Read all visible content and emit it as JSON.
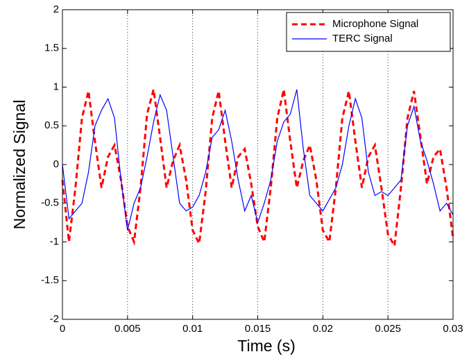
{
  "chart_data": {
    "type": "line",
    "x_label": "Time (s)",
    "y_label": "Normalized Signal",
    "x": [
      0,
      0.0005,
      0.001,
      0.0015,
      0.002,
      0.0025,
      0.003,
      0.0035,
      0.004,
      0.0045,
      0.005,
      0.0055,
      0.006,
      0.0065,
      0.007,
      0.0075,
      0.008,
      0.0085,
      0.009,
      0.0095,
      0.01,
      0.0105,
      0.011,
      0.0115,
      0.012,
      0.0125,
      0.013,
      0.0135,
      0.014,
      0.0145,
      0.015,
      0.0155,
      0.016,
      0.0165,
      0.017,
      0.0175,
      0.018,
      0.0185,
      0.019,
      0.0195,
      0.02,
      0.0205,
      0.021,
      0.0215,
      0.022,
      0.0225,
      0.023,
      0.0235,
      0.024,
      0.0245,
      0.025,
      0.0255,
      0.026,
      0.0265,
      0.027,
      0.0275,
      0.028,
      0.0285,
      0.029,
      0.0295,
      0.03
    ],
    "series": [
      {
        "name": "Microphone Signal",
        "color": "#ff0000",
        "dash": true,
        "values": [
          -0.2,
          -1,
          -0.3,
          0.6,
          0.95,
          0.3,
          -0.3,
          0.1,
          0.25,
          -0.2,
          -0.8,
          -1,
          -0.3,
          0.65,
          0.97,
          0.35,
          -0.3,
          0.05,
          0.25,
          -0.2,
          -0.85,
          -1.02,
          -0.35,
          0.6,
          0.95,
          0.3,
          -0.3,
          0.1,
          0.2,
          -0.25,
          -0.8,
          -1,
          -0.3,
          0.6,
          0.97,
          0.3,
          -0.3,
          0.05,
          0.25,
          -0.2,
          -0.85,
          -1,
          -0.3,
          0.6,
          0.95,
          0.3,
          -0.3,
          0.1,
          0.25,
          -0.3,
          -0.9,
          -1.05,
          -0.3,
          0.6,
          0.95,
          0.35,
          -0.25,
          0.1,
          0.2,
          -0.3,
          -0.95
        ]
      },
      {
        "name": "TERC Signal",
        "color": "#0000ff",
        "dash": false,
        "values": [
          0,
          -0.7,
          -0.6,
          -0.5,
          -0.1,
          0.5,
          0.7,
          0.85,
          0.6,
          -0.2,
          -0.85,
          -0.5,
          -0.3,
          0.1,
          0.55,
          0.9,
          0.7,
          0.1,
          -0.5,
          -0.6,
          -0.55,
          -0.4,
          -0.1,
          0.35,
          0.45,
          0.7,
          0.3,
          -0.2,
          -0.6,
          -0.4,
          -0.75,
          -0.5,
          -0.2,
          0.3,
          0.55,
          0.65,
          0.97,
          0.2,
          -0.4,
          -0.5,
          -0.6,
          -0.45,
          -0.3,
          0,
          0.5,
          0.85,
          0.6,
          -0.1,
          -0.4,
          -0.35,
          -0.4,
          -0.3,
          -0.2,
          0.5,
          0.75,
          0.3,
          0.05,
          -0.25,
          -0.6,
          -0.5,
          -0.65
        ]
      }
    ],
    "xlim": [
      0,
      0.03
    ],
    "xticks": [
      0,
      0.005,
      0.01,
      0.015,
      0.02,
      0.025,
      0.03
    ],
    "ylim": [
      -2,
      2
    ],
    "yticks": [
      -2,
      -1.5,
      -1,
      -0.5,
      0,
      0.5,
      1,
      1.5,
      2
    ],
    "xgrid": true,
    "legend": "top-right"
  }
}
